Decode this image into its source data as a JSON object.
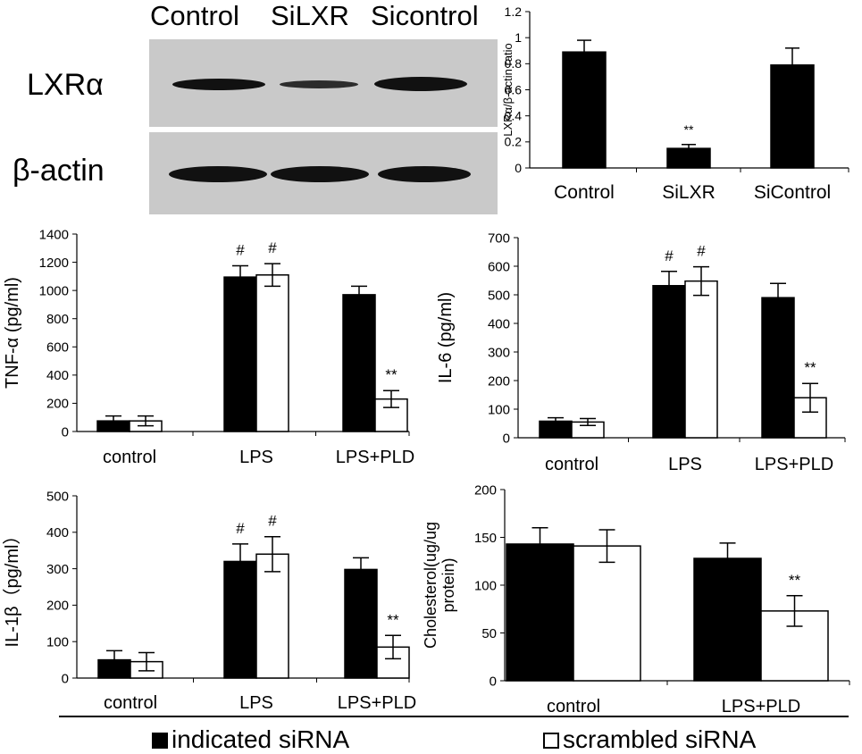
{
  "blot": {
    "lanes": [
      "Control",
      "SiLXR",
      "Sicontrol"
    ],
    "rows": [
      "LXRα",
      "β-actin"
    ]
  },
  "chart_data": [
    {
      "id": "lxr_ratio",
      "type": "bar",
      "ylabel": "LXRα/β-actin ratio",
      "ylim": [
        0,
        1.2
      ],
      "yticks": [
        0,
        0.2,
        0.4,
        0.6,
        0.8,
        1,
        1.2
      ],
      "categories": [
        "Control",
        "SiLXR",
        "SiControl"
      ],
      "series": [
        {
          "values": [
            0.89,
            0.15,
            0.79
          ],
          "errors": [
            0.09,
            0.03,
            0.13
          ],
          "color": "#000000"
        }
      ],
      "annotations": [
        {
          "category": 1,
          "series": 0,
          "text": "**"
        }
      ]
    },
    {
      "id": "tnf",
      "type": "bar",
      "ylabel": "TNF-α (pg/ml)",
      "ylim": [
        0,
        1400
      ],
      "yticks": [
        0,
        200,
        400,
        600,
        800,
        1000,
        1200,
        1400
      ],
      "categories": [
        "control",
        "LPS",
        "LPS+PLD"
      ],
      "series": [
        {
          "name": "indicated siRNA",
          "values": [
            75,
            1095,
            970
          ],
          "errors": [
            35,
            80,
            60
          ],
          "color": "#000000"
        },
        {
          "name": "scrambled siRNA",
          "values": [
            75,
            1110,
            230
          ],
          "errors": [
            35,
            80,
            60
          ],
          "color": "#ffffff"
        }
      ],
      "annotations": [
        {
          "category": 1,
          "series": 0,
          "text": "#"
        },
        {
          "category": 1,
          "series": 1,
          "text": "#"
        },
        {
          "category": 2,
          "series": 1,
          "text": "**"
        }
      ]
    },
    {
      "id": "il6",
      "type": "bar",
      "ylabel": "IL-6 (pg/ml)",
      "ylim": [
        0,
        700
      ],
      "yticks": [
        0,
        100,
        200,
        300,
        400,
        500,
        600,
        700
      ],
      "categories": [
        "control",
        "LPS",
        "LPS+PLD"
      ],
      "series": [
        {
          "name": "indicated siRNA",
          "values": [
            58,
            532,
            490
          ],
          "errors": [
            12,
            50,
            50
          ],
          "color": "#000000"
        },
        {
          "name": "scrambled siRNA",
          "values": [
            55,
            548,
            140
          ],
          "errors": [
            12,
            50,
            50
          ],
          "color": "#ffffff"
        }
      ],
      "annotations": [
        {
          "category": 1,
          "series": 0,
          "text": "#"
        },
        {
          "category": 1,
          "series": 1,
          "text": "#"
        },
        {
          "category": 2,
          "series": 1,
          "text": "**"
        }
      ]
    },
    {
      "id": "il1b",
      "type": "bar",
      "ylabel": "IL-1β（pg/ml）",
      "ylim": [
        0,
        500
      ],
      "yticks": [
        0,
        100,
        200,
        300,
        400,
        500
      ],
      "categories": [
        "control",
        "LPS",
        "LPS+PLD"
      ],
      "series": [
        {
          "name": "indicated siRNA",
          "values": [
            50,
            320,
            298
          ],
          "errors": [
            25,
            48,
            32
          ],
          "color": "#000000"
        },
        {
          "name": "scrambled siRNA",
          "values": [
            45,
            340,
            85
          ],
          "errors": [
            25,
            48,
            32
          ],
          "color": "#ffffff"
        }
      ],
      "annotations": [
        {
          "category": 1,
          "series": 0,
          "text": "#"
        },
        {
          "category": 1,
          "series": 1,
          "text": "#"
        },
        {
          "category": 2,
          "series": 1,
          "text": "**"
        }
      ]
    },
    {
      "id": "cholesterol",
      "type": "bar",
      "ylabel": "Cholesterol(ug/ug protein)",
      "ylabel_lines": [
        "Cholesterol(ug/ug",
        "protein)"
      ],
      "ylim": [
        0,
        200
      ],
      "yticks": [
        0,
        50,
        100,
        150,
        200
      ],
      "categories": [
        "control",
        "LPS+PLD"
      ],
      "series": [
        {
          "name": "indicated siRNA",
          "values": [
            143,
            128
          ],
          "errors": [
            17,
            16
          ],
          "color": "#000000"
        },
        {
          "name": "scrambled siRNA",
          "values": [
            141,
            73
          ],
          "errors": [
            17,
            16
          ],
          "color": "#ffffff"
        }
      ],
      "annotations": [
        {
          "category": 1,
          "series": 1,
          "text": "**"
        }
      ]
    }
  ],
  "legend": {
    "items": [
      {
        "label": "indicated siRNA",
        "color": "#000000"
      },
      {
        "label": "scrambled siRNA",
        "color": "#ffffff"
      }
    ]
  }
}
